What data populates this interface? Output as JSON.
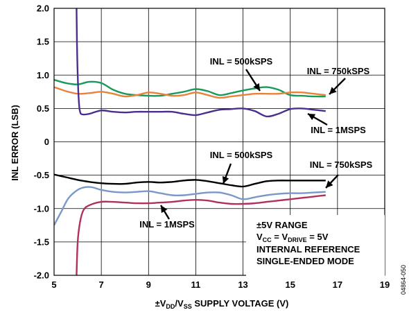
{
  "chart_data": {
    "type": "line",
    "xlabel": "±V_DD/V_SS SUPPLY VOLTAGE (V)",
    "xlabel_parts": {
      "pre": "±V",
      "sub1": "DD",
      "mid": "/V",
      "sub2": "SS",
      "post": " SUPPLY VOLTAGE (V)"
    },
    "ylabel": "INL ERROR (LSB)",
    "xlim": [
      5,
      19
    ],
    "ylim": [
      -2.0,
      2.0
    ],
    "xticks": [
      "5",
      "7",
      "9",
      "11",
      "13",
      "15",
      "17",
      "19"
    ],
    "yticks": [
      "2.0",
      "1.5",
      "1.0",
      "0.5",
      "0",
      "-0.5",
      "-1.0",
      "-1.5",
      "-2.0"
    ],
    "grid": true,
    "figure_id": "04864-050",
    "conditions": {
      "line1": "±5V RANGE",
      "line2_parts": {
        "a": "V",
        "a_sub": "CC",
        "b": " = V",
        "b_sub": "DRIVE",
        "c": " = 5V"
      },
      "line3": "INTERNAL REFERENCE",
      "line4": "SINGLE-ENDED MODE"
    },
    "annotations": [
      {
        "text": "INL = 500kSPS",
        "series": "max_500ksps"
      },
      {
        "text": "INL = 750kSPS",
        "series": "max_750ksps"
      },
      {
        "text": "INL = 1MSPS",
        "series": "max_1msps"
      },
      {
        "text": "INL = 500kSPS",
        "series": "min_500ksps"
      },
      {
        "text": "INL = 750kSPS",
        "series": "min_750ksps"
      },
      {
        "text": "INL = 1MSPS",
        "series": "min_1msps"
      }
    ],
    "series": [
      {
        "id": "max_500ksps",
        "color": "#1a9a5a",
        "x": [
          5.0,
          5.5,
          6.0,
          6.5,
          7.0,
          7.5,
          8.0,
          8.5,
          9.0,
          9.5,
          10.0,
          10.5,
          11.0,
          11.5,
          12.0,
          12.5,
          13.0,
          13.5,
          14.0,
          14.5,
          15.0,
          15.5,
          16.0,
          16.5
        ],
        "y": [
          0.93,
          0.88,
          0.86,
          0.9,
          0.88,
          0.78,
          0.72,
          0.7,
          0.69,
          0.69,
          0.72,
          0.75,
          0.79,
          0.76,
          0.7,
          0.73,
          0.77,
          0.8,
          0.82,
          0.78,
          0.7,
          0.69,
          0.68,
          0.68
        ]
      },
      {
        "id": "max_750ksps",
        "color": "#e8823a",
        "x": [
          5.0,
          5.5,
          6.0,
          6.5,
          7.0,
          7.5,
          8.0,
          8.5,
          9.0,
          9.5,
          10.0,
          10.5,
          11.0,
          11.5,
          12.0,
          12.5,
          13.0,
          13.5,
          14.0,
          14.5,
          15.0,
          15.5,
          16.0,
          16.5
        ],
        "y": [
          0.82,
          0.76,
          0.72,
          0.73,
          0.75,
          0.72,
          0.68,
          0.7,
          0.74,
          0.72,
          0.69,
          0.7,
          0.74,
          0.7,
          0.66,
          0.68,
          0.7,
          0.72,
          0.72,
          0.72,
          0.74,
          0.74,
          0.72,
          0.7
        ]
      },
      {
        "id": "max_1msps",
        "color": "#4b2f8f",
        "x": [
          5.95,
          5.97,
          6.0,
          6.05,
          6.1,
          6.2,
          6.5,
          7.0,
          7.5,
          8.0,
          8.5,
          9.0,
          9.5,
          10.0,
          10.5,
          11.0,
          11.5,
          12.0,
          12.5,
          13.0,
          13.5,
          14.0,
          14.5,
          15.0,
          15.5,
          16.0,
          16.5
        ],
        "y": [
          2.0,
          1.5,
          1.0,
          0.6,
          0.45,
          0.41,
          0.42,
          0.47,
          0.45,
          0.44,
          0.45,
          0.45,
          0.45,
          0.45,
          0.42,
          0.4,
          0.44,
          0.48,
          0.49,
          0.5,
          0.46,
          0.38,
          0.42,
          0.49,
          0.5,
          0.48,
          0.46
        ]
      },
      {
        "id": "min_500ksps",
        "color": "#000000",
        "x": [
          5.0,
          5.5,
          6.0,
          6.5,
          7.0,
          7.5,
          8.0,
          8.5,
          9.0,
          9.5,
          10.0,
          10.5,
          11.0,
          11.5,
          12.0,
          12.5,
          13.0,
          13.5,
          14.0,
          14.5,
          15.0,
          15.5,
          16.0,
          16.5
        ],
        "y": [
          -0.49,
          -0.53,
          -0.57,
          -0.6,
          -0.62,
          -0.63,
          -0.63,
          -0.61,
          -0.6,
          -0.61,
          -0.6,
          -0.58,
          -0.57,
          -0.59,
          -0.62,
          -0.65,
          -0.67,
          -0.63,
          -0.59,
          -0.58,
          -0.58,
          -0.58,
          -0.58,
          -0.58
        ]
      },
      {
        "id": "min_750ksps",
        "color": "#7a97c9",
        "x": [
          5.0,
          5.3,
          5.6,
          6.0,
          6.3,
          6.6,
          7.0,
          7.5,
          8.0,
          8.5,
          9.0,
          9.5,
          10.0,
          10.5,
          11.0,
          11.5,
          12.0,
          12.5,
          13.0,
          13.5,
          14.0,
          14.5,
          15.0,
          15.5,
          16.0,
          16.5
        ],
        "y": [
          -1.25,
          -1.05,
          -0.85,
          -0.72,
          -0.68,
          -0.68,
          -0.72,
          -0.75,
          -0.76,
          -0.75,
          -0.74,
          -0.77,
          -0.8,
          -0.8,
          -0.78,
          -0.76,
          -0.76,
          -0.8,
          -0.86,
          -0.83,
          -0.8,
          -0.78,
          -0.77,
          -0.77,
          -0.76,
          -0.75
        ]
      },
      {
        "id": "min_1msps",
        "color": "#b0305e",
        "x": [
          5.95,
          6.0,
          6.1,
          6.25,
          6.5,
          7.0,
          7.5,
          8.0,
          8.5,
          9.0,
          9.5,
          10.0,
          10.5,
          11.0,
          11.5,
          12.0,
          12.5,
          13.0,
          13.5,
          14.0,
          14.5,
          15.0,
          15.5,
          16.0,
          16.5
        ],
        "y": [
          -2.0,
          -1.5,
          -1.2,
          -1.02,
          -0.95,
          -0.9,
          -0.9,
          -0.91,
          -0.92,
          -0.92,
          -0.91,
          -0.9,
          -0.88,
          -0.87,
          -0.88,
          -0.91,
          -0.93,
          -0.93,
          -0.92,
          -0.9,
          -0.88,
          -0.86,
          -0.84,
          -0.82,
          -0.8
        ]
      }
    ]
  }
}
